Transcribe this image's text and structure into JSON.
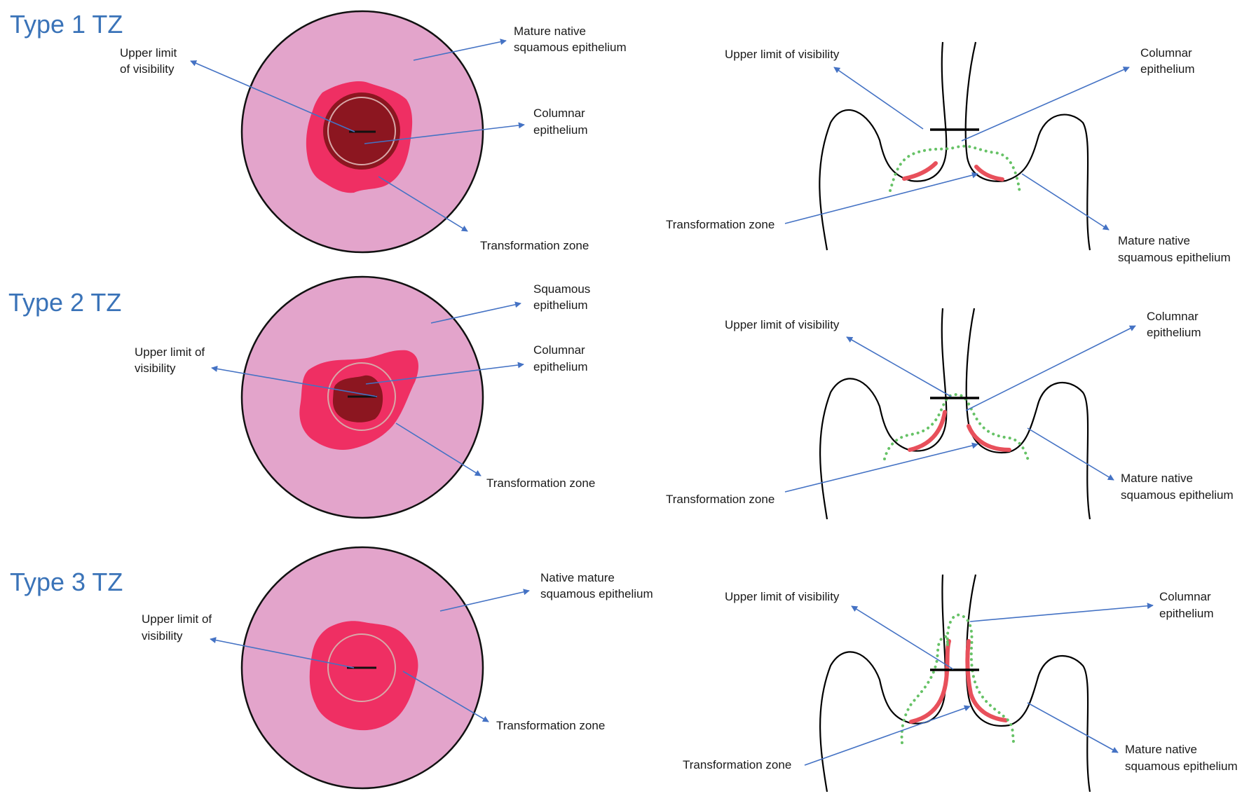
{
  "panels": [
    {
      "title": "Type 1 TZ",
      "disk_labels": {
        "upper_limit": [
          "Upper limit",
          "of visibility"
        ],
        "squamous": [
          "Mature native",
          "squamous epithelium"
        ],
        "columnar": [
          "Columnar",
          "epithelium"
        ],
        "tz": [
          "Transformation zone"
        ]
      },
      "side_labels": {
        "upper_limit": [
          "Upper limit of visibility"
        ],
        "columnar": [
          "Columnar",
          "epithelium"
        ],
        "tz": [
          "Transformation zone"
        ],
        "squamous": [
          "Mature native",
          "squamous epithelium"
        ]
      }
    },
    {
      "title": "Type 2 TZ",
      "disk_labels": {
        "upper_limit": [
          "Upper limit of",
          "visibility"
        ],
        "squamous": [
          "Squamous",
          "epithelium"
        ],
        "columnar": [
          "Columnar",
          "epithelium"
        ],
        "tz": [
          "Transformation zone"
        ]
      },
      "side_labels": {
        "upper_limit": [
          "Upper limit of visibility"
        ],
        "columnar": [
          "Columnar",
          "epithelium"
        ],
        "tz": [
          "Transformation zone"
        ],
        "squamous": [
          "Mature native",
          "squamous epithelium"
        ]
      }
    },
    {
      "title": "Type 3 TZ",
      "disk_labels": {
        "upper_limit": [
          "Upper limit of",
          "visibility"
        ],
        "squamous": [
          "Native mature",
          "squamous epithelium"
        ],
        "tz": [
          "Transformation zone"
        ]
      },
      "side_labels": {
        "upper_limit": [
          "Upper limit of visibility"
        ],
        "columnar": [
          "Columnar",
          "epithelium"
        ],
        "tz": [
          "Transformation zone"
        ],
        "squamous": [
          "Mature native",
          "squamous epithelium"
        ]
      }
    }
  ],
  "colors": {
    "title": "#3a73b8",
    "arrow": "#4472c4",
    "squamous_pink": "#e3a4cb",
    "transformation_zone": "#ef2f63",
    "columnar": "#8c1620",
    "tz_edge_red": "#e8505b",
    "squamocolumnar_dots": "#66c266"
  }
}
